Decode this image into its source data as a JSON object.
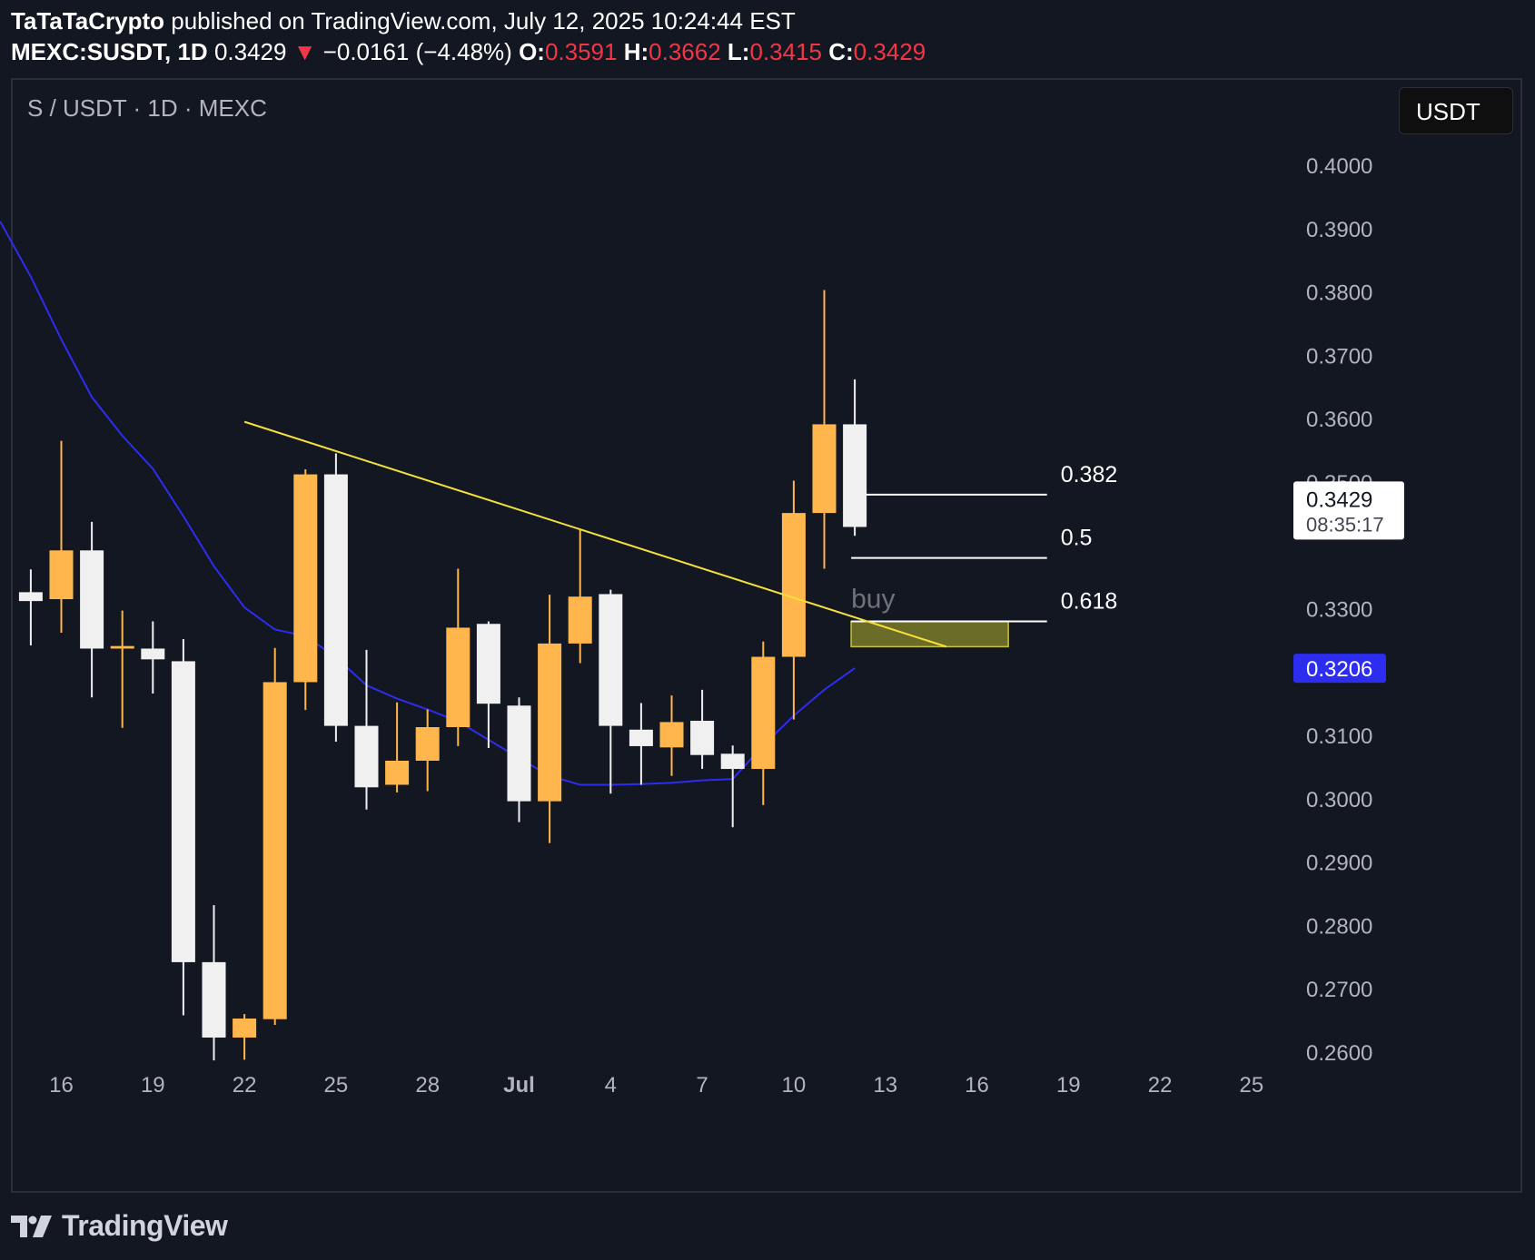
{
  "header": {
    "author": "TaTaTaCrypto",
    "published_text": "published on TradingView.com, July 12, 2025 10:24:44 EST",
    "symbol": "MEXC:SUSDT, 1D",
    "last": "0.3429",
    "change_arrow": "▼",
    "change": "−0.0161 (−4.48%)",
    "o_label": "O:",
    "o": "0.3591",
    "h_label": "H:",
    "h": "0.3662",
    "l_label": "L:",
    "l": "0.3415",
    "c_label": "C:",
    "c": "0.3429"
  },
  "chart_title": "S / USDT · 1D · MEXC",
  "currency_button": "USDT",
  "logo_text": "TradingView",
  "chart_data": {
    "type": "candlestick",
    "colors": {
      "up": "#ffb74d",
      "down": "#f0f0f0",
      "ma": "#2d2df0",
      "trendline": "#f5e03c",
      "zone": "#8a8a2a"
    },
    "ylim": [
      0.2575,
      0.41
    ],
    "y_ticks": [
      "0.4000",
      "0.3900",
      "0.3800",
      "0.3700",
      "0.3600",
      "0.3500",
      "0.3300",
      "0.3100",
      "0.3000",
      "0.2900",
      "0.2800",
      "0.2700",
      "0.2600"
    ],
    "x_ticks": [
      {
        "label": "16",
        "day": 0
      },
      {
        "label": "19",
        "day": 3
      },
      {
        "label": "22",
        "day": 6
      },
      {
        "label": "25",
        "day": 9
      },
      {
        "label": "28",
        "day": 12
      },
      {
        "label": "Jul",
        "day": 15,
        "bold": true
      },
      {
        "label": "4",
        "day": 18
      },
      {
        "label": "7",
        "day": 21
      },
      {
        "label": "10",
        "day": 24
      },
      {
        "label": "13",
        "day": 27
      },
      {
        "label": "16",
        "day": 30
      },
      {
        "label": "19",
        "day": 33
      },
      {
        "label": "22",
        "day": 36
      },
      {
        "label": "25",
        "day": 39
      }
    ],
    "candles": [
      {
        "day": -1,
        "o": 0.3326,
        "h": 0.3362,
        "l": 0.3242,
        "c": 0.3312
      },
      {
        "day": 0,
        "o": 0.3315,
        "h": 0.3565,
        "l": 0.3262,
        "c": 0.3392
      },
      {
        "day": 1,
        "o": 0.3392,
        "h": 0.3437,
        "l": 0.316,
        "c": 0.3237
      },
      {
        "day": 2,
        "o": 0.3237,
        "h": 0.3297,
        "l": 0.3112,
        "c": 0.3241
      },
      {
        "day": 3,
        "o": 0.3237,
        "h": 0.328,
        "l": 0.3166,
        "c": 0.322
      },
      {
        "day": 4,
        "o": 0.3217,
        "h": 0.3252,
        "l": 0.2658,
        "c": 0.2742
      },
      {
        "day": 5,
        "o": 0.2742,
        "h": 0.2832,
        "l": 0.2587,
        "c": 0.2623
      },
      {
        "day": 6,
        "o": 0.2623,
        "h": 0.266,
        "l": 0.2588,
        "c": 0.2653
      },
      {
        "day": 7,
        "o": 0.2652,
        "h": 0.3238,
        "l": 0.2643,
        "c": 0.3184
      },
      {
        "day": 8,
        "o": 0.3184,
        "h": 0.352,
        "l": 0.314,
        "c": 0.3512
      },
      {
        "day": 9,
        "o": 0.3512,
        "h": 0.3545,
        "l": 0.309,
        "c": 0.3115
      },
      {
        "day": 10,
        "o": 0.3115,
        "h": 0.3235,
        "l": 0.2983,
        "c": 0.3018
      },
      {
        "day": 11,
        "o": 0.3022,
        "h": 0.3152,
        "l": 0.301,
        "c": 0.306
      },
      {
        "day": 12,
        "o": 0.306,
        "h": 0.3141,
        "l": 0.3012,
        "c": 0.3113
      },
      {
        "day": 13,
        "o": 0.3113,
        "h": 0.3363,
        "l": 0.3083,
        "c": 0.327
      },
      {
        "day": 14,
        "o": 0.3276,
        "h": 0.328,
        "l": 0.308,
        "c": 0.315
      },
      {
        "day": 15,
        "o": 0.3147,
        "h": 0.316,
        "l": 0.2963,
        "c": 0.2996
      },
      {
        "day": 16,
        "o": 0.2996,
        "h": 0.3322,
        "l": 0.293,
        "c": 0.3245
      },
      {
        "day": 17,
        "o": 0.3245,
        "h": 0.3424,
        "l": 0.3214,
        "c": 0.3319
      },
      {
        "day": 18,
        "o": 0.3323,
        "h": 0.333,
        "l": 0.3008,
        "c": 0.3115
      },
      {
        "day": 19,
        "o": 0.3109,
        "h": 0.3151,
        "l": 0.3022,
        "c": 0.3083
      },
      {
        "day": 20,
        "o": 0.3081,
        "h": 0.3163,
        "l": 0.3036,
        "c": 0.3121
      },
      {
        "day": 21,
        "o": 0.3123,
        "h": 0.3172,
        "l": 0.3047,
        "c": 0.3069
      },
      {
        "day": 22,
        "o": 0.3071,
        "h": 0.3084,
        "l": 0.2955,
        "c": 0.3047
      },
      {
        "day": 23,
        "o": 0.3047,
        "h": 0.3248,
        "l": 0.299,
        "c": 0.3224
      },
      {
        "day": 24,
        "o": 0.3224,
        "h": 0.3502,
        "l": 0.3125,
        "c": 0.3451
      },
      {
        "day": 25,
        "o": 0.3451,
        "h": 0.3803,
        "l": 0.3363,
        "c": 0.3591
      },
      {
        "day": 26,
        "o": 0.3591,
        "h": 0.3662,
        "l": 0.3415,
        "c": 0.3429
      }
    ],
    "ma_line": [
      {
        "day": -2,
        "v": 0.3911
      },
      {
        "day": -1,
        "v": 0.3824
      },
      {
        "day": 0,
        "v": 0.3725
      },
      {
        "day": 1,
        "v": 0.3634
      },
      {
        "day": 2,
        "v": 0.3573
      },
      {
        "day": 3,
        "v": 0.3521
      },
      {
        "day": 4,
        "v": 0.3446
      },
      {
        "day": 5,
        "v": 0.3367
      },
      {
        "day": 6,
        "v": 0.3302
      },
      {
        "day": 7,
        "v": 0.3267
      },
      {
        "day": 8,
        "v": 0.3257
      },
      {
        "day": 9,
        "v": 0.3223
      },
      {
        "day": 10,
        "v": 0.3179
      },
      {
        "day": 11,
        "v": 0.3158
      },
      {
        "day": 12,
        "v": 0.3141
      },
      {
        "day": 13,
        "v": 0.3122
      },
      {
        "day": 14,
        "v": 0.3093
      },
      {
        "day": 15,
        "v": 0.3064
      },
      {
        "day": 16,
        "v": 0.3036
      },
      {
        "day": 17,
        "v": 0.3022
      },
      {
        "day": 18,
        "v": 0.3022
      },
      {
        "day": 19,
        "v": 0.3023
      },
      {
        "day": 20,
        "v": 0.3025
      },
      {
        "day": 21,
        "v": 0.3029
      },
      {
        "day": 22,
        "v": 0.3031
      },
      {
        "day": 23,
        "v": 0.3084
      },
      {
        "day": 24,
        "v": 0.3131
      },
      {
        "day": 25,
        "v": 0.3172
      },
      {
        "day": 26,
        "v": 0.3206
      }
    ],
    "trendline": {
      "from": {
        "day": 6,
        "v": 0.3595
      },
      "to": {
        "day": 29,
        "v": 0.324
      }
    },
    "fib_levels": [
      {
        "label": "0.382",
        "value": 0.348
      },
      {
        "label": "0.5",
        "value": 0.338
      },
      {
        "label": "0.618",
        "value": 0.328
      }
    ],
    "fib_range": {
      "from_day": 26,
      "to_day": 32
    },
    "zone": {
      "label": "buy",
      "top": 0.328,
      "bottom": 0.324,
      "from_day": 26,
      "to_day": 31
    },
    "price_tags": [
      {
        "value": "0.3429",
        "timer": "08:35:17",
        "level": 0.3455,
        "style": "last"
      },
      {
        "value": "0.3206",
        "level": 0.3206,
        "style": "ma"
      }
    ]
  }
}
